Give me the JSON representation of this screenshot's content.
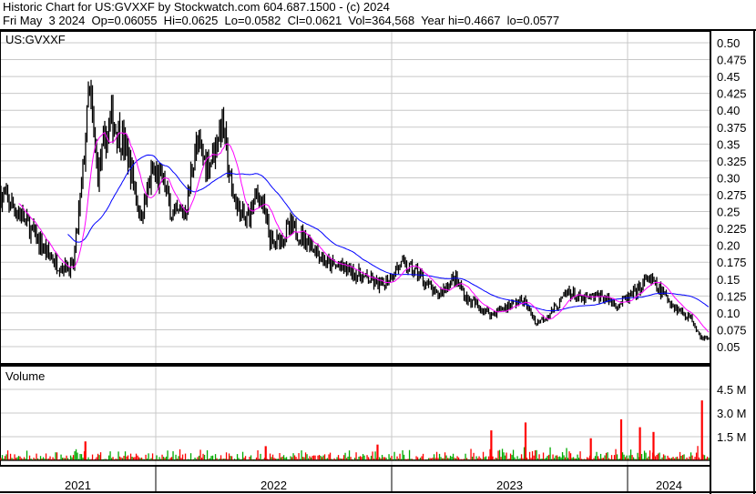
{
  "header": {
    "title": "Historic Chart for US:GVXXF by Stockwatch.com 604.687.1500 - (c) 2024",
    "quote": "Fri May  3 2024  Op=0.06055  Hi=0.0625  Lo=0.0582  Cl=0.0621  Vol=364,568  Year hi=0.4667  lo=0.0577"
  },
  "chart_data": [
    {
      "type": "line",
      "symbol_label": "US:GVXXF",
      "ylim": [
        0.05,
        0.5
      ],
      "yticks": [
        "0.50",
        "0.475",
        "0.45",
        "0.425",
        "0.40",
        "0.375",
        "0.35",
        "0.325",
        "0.30",
        "0.275",
        "0.25",
        "0.225",
        "0.20",
        "0.175",
        "0.15",
        "0.125",
        "0.10",
        "0.075",
        "0.05"
      ],
      "xticks": [
        "2021",
        "2022",
        "2023",
        "2024"
      ],
      "grid": true,
      "colors": {
        "price": "#000000",
        "ma_short": "#ff00ff",
        "ma_long": "#0000ff"
      },
      "series": [
        {
          "values": [
            [
              "2021-05-08",
              0.274
            ],
            [
              "2021-06-05",
              0.247
            ],
            [
              "2021-07-03",
              0.206
            ],
            [
              "2021-08-01",
              0.172
            ],
            [
              "2021-08-26",
              0.166
            ],
            [
              "2021-09-09",
              0.294
            ],
            [
              "2021-09-20",
              0.43
            ],
            [
              "2021-10-03",
              0.307
            ],
            [
              "2021-10-24",
              0.388
            ],
            [
              "2021-11-14",
              0.348
            ],
            [
              "2021-11-28",
              0.294
            ],
            [
              "2021-12-08",
              0.24
            ],
            [
              "2021-12-27",
              0.307
            ],
            [
              "2022-01-13",
              0.294
            ],
            [
              "2022-01-27",
              0.24
            ],
            [
              "2022-02-17",
              0.253
            ],
            [
              "2022-03-03",
              0.348
            ],
            [
              "2022-03-24",
              0.32
            ],
            [
              "2022-04-14",
              0.381
            ],
            [
              "2022-04-28",
              0.28
            ],
            [
              "2022-05-19",
              0.233
            ],
            [
              "2022-06-09",
              0.28
            ],
            [
              "2022-06-30",
              0.2
            ],
            [
              "2022-07-29",
              0.226
            ],
            [
              "2022-08-26",
              0.206
            ],
            [
              "2022-09-23",
              0.172
            ],
            [
              "2022-10-21",
              0.166
            ],
            [
              "2022-11-19",
              0.152
            ],
            [
              "2022-12-17",
              0.139
            ],
            [
              "2023-01-14",
              0.172
            ],
            [
              "2023-02-11",
              0.159
            ],
            [
              "2023-03-11",
              0.125
            ],
            [
              "2023-04-08",
              0.152
            ],
            [
              "2023-04-29",
              0.119
            ],
            [
              "2023-06-04",
              0.098
            ],
            [
              "2023-07-02",
              0.112
            ],
            [
              "2023-07-23",
              0.119
            ],
            [
              "2023-08-13",
              0.085
            ],
            [
              "2023-09-10",
              0.105
            ],
            [
              "2023-10-01",
              0.132
            ],
            [
              "2023-10-22",
              0.119
            ],
            [
              "2023-11-19",
              0.125
            ],
            [
              "2023-12-17",
              0.112
            ],
            [
              "2024-01-16",
              0.132
            ],
            [
              "2024-02-02",
              0.152
            ],
            [
              "2024-02-27",
              0.125
            ],
            [
              "2024-03-19",
              0.105
            ],
            [
              "2024-04-09",
              0.092
            ],
            [
              "2024-04-23",
              0.065
            ],
            [
              "2024-05-03",
              0.0621
            ]
          ]
        }
      ]
    },
    {
      "type": "bar",
      "title": "Volume",
      "yticks": [
        "4.5 M",
        "3.0 M",
        "1.5 M"
      ],
      "ylim": [
        0,
        6000000
      ],
      "colors": {
        "up": "#00aa00",
        "down": "#ff0000"
      },
      "spikes": [
        [
          "2021-09-14",
          1200000
        ],
        [
          "2022-06-20",
          900000
        ],
        [
          "2022-12-10",
          1000000
        ],
        [
          "2023-06-04",
          1900000
        ],
        [
          "2023-07-27",
          2400000
        ],
        [
          "2023-11-05",
          1400000
        ],
        [
          "2023-12-22",
          2600000
        ],
        [
          "2024-01-20",
          2100000
        ],
        [
          "2024-02-10",
          1800000
        ],
        [
          "2024-04-25",
          3800000
        ]
      ]
    }
  ]
}
